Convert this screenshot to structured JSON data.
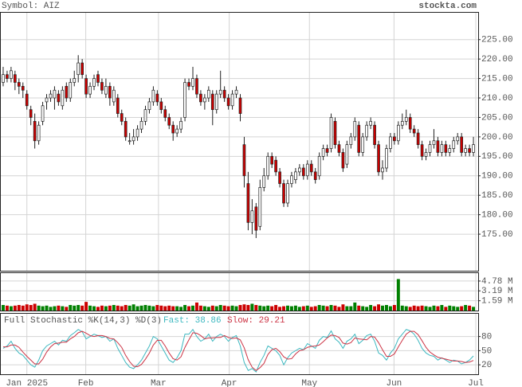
{
  "header": {
    "symbol": "Symbol: AIZ",
    "source": "stockta.com"
  },
  "chart_data": [
    {
      "type": "candlestick",
      "up_color": "#ffffff",
      "down_color": "#cc0000",
      "edge_color": "#222222",
      "ohlc": [
        [
          214,
          218,
          213,
          216
        ],
        [
          216,
          217,
          214,
          215
        ],
        [
          215,
          218,
          214,
          217
        ],
        [
          216,
          217,
          212,
          214
        ],
        [
          214,
          215,
          211,
          213
        ],
        [
          213,
          214,
          210,
          212
        ],
        [
          211,
          212,
          207,
          208
        ],
        [
          207,
          208,
          203,
          205
        ],
        [
          204,
          206,
          197,
          199
        ],
        [
          199,
          204,
          198,
          203
        ],
        [
          204,
          209,
          203,
          208
        ],
        [
          209,
          211,
          207,
          210
        ],
        [
          210,
          212,
          209,
          211
        ],
        [
          210,
          213,
          207,
          212
        ],
        [
          211,
          212,
          208,
          209
        ],
        [
          208,
          213,
          207,
          212
        ],
        [
          213,
          214,
          209,
          210
        ],
        [
          210,
          215,
          209,
          214
        ],
        [
          214,
          217,
          213,
          215
        ],
        [
          216,
          221,
          214,
          219
        ],
        [
          219,
          220,
          215,
          216
        ],
        [
          215,
          216,
          210,
          211
        ],
        [
          211,
          214,
          210,
          213
        ],
        [
          213,
          216,
          212,
          215
        ],
        [
          216,
          217,
          213,
          214
        ],
        [
          214,
          215,
          211,
          212
        ],
        [
          211,
          215,
          210,
          213
        ],
        [
          213,
          214,
          208,
          210
        ],
        [
          209,
          213,
          208,
          212
        ],
        [
          210,
          211,
          205,
          206
        ],
        [
          206,
          207,
          203,
          204
        ],
        [
          204,
          205,
          199,
          200
        ],
        [
          199,
          201,
          198,
          199
        ],
        [
          199,
          202,
          198,
          200
        ],
        [
          200,
          203,
          199,
          202
        ],
        [
          202,
          205,
          201,
          204
        ],
        [
          204,
          208,
          203,
          207
        ],
        [
          207,
          210,
          206,
          209
        ],
        [
          209,
          213,
          208,
          212
        ],
        [
          211,
          212,
          208,
          209
        ],
        [
          209,
          210,
          206,
          207
        ],
        [
          207,
          208,
          204,
          205
        ],
        [
          205,
          206,
          202,
          203
        ],
        [
          203,
          204,
          199,
          201
        ],
        [
          201,
          203,
          200,
          202
        ],
        [
          202,
          205,
          201,
          204
        ],
        [
          205,
          215,
          204,
          214
        ],
        [
          214,
          215,
          212,
          213
        ],
        [
          213,
          218,
          212,
          215
        ],
        [
          215,
          216,
          210,
          211
        ],
        [
          211,
          212,
          208,
          209
        ],
        [
          209,
          211,
          207,
          210
        ],
        [
          210,
          213,
          209,
          212
        ],
        [
          211,
          212,
          203,
          207
        ],
        [
          207,
          212,
          206,
          211
        ],
        [
          211,
          217,
          210,
          212
        ],
        [
          212,
          213,
          209,
          210
        ],
        [
          210,
          211,
          207,
          208
        ],
        [
          208,
          212,
          207,
          211
        ],
        [
          211,
          213,
          210,
          212
        ],
        [
          210,
          211,
          204,
          206
        ],
        [
          198,
          200,
          187,
          190
        ],
        [
          188,
          191,
          176,
          178
        ],
        [
          178,
          184,
          175,
          181
        ],
        [
          182,
          183,
          174,
          176
        ],
        [
          177,
          189,
          176,
          187
        ],
        [
          187,
          192,
          186,
          190
        ],
        [
          190,
          196,
          189,
          195
        ],
        [
          195,
          196,
          192,
          193
        ],
        [
          194,
          195,
          190,
          191
        ],
        [
          191,
          192,
          187,
          188
        ],
        [
          188,
          189,
          182,
          183
        ],
        [
          183,
          189,
          182,
          188
        ],
        [
          188,
          191,
          187,
          190
        ],
        [
          189,
          192,
          188,
          191
        ],
        [
          191,
          193,
          190,
          192
        ],
        [
          192,
          193,
          189,
          190
        ],
        [
          190,
          194,
          189,
          193
        ],
        [
          193,
          194,
          190,
          191
        ],
        [
          191,
          192,
          188,
          189
        ],
        [
          190,
          196,
          189,
          195
        ],
        [
          195,
          198,
          194,
          197
        ],
        [
          197,
          198,
          195,
          196
        ],
        [
          197,
          206,
          196,
          205
        ],
        [
          204,
          205,
          197,
          198
        ],
        [
          198,
          199,
          195,
          196
        ],
        [
          196,
          197,
          191,
          192
        ],
        [
          193,
          199,
          192,
          198
        ],
        [
          198,
          201,
          197,
          200
        ],
        [
          200,
          205,
          199,
          204
        ],
        [
          203,
          204,
          195,
          196
        ],
        [
          196,
          201,
          195,
          200
        ],
        [
          200,
          204,
          199,
          203
        ],
        [
          203,
          205,
          202,
          204
        ],
        [
          203,
          204,
          197,
          198
        ],
        [
          198,
          199,
          190,
          191
        ],
        [
          191,
          194,
          189,
          192
        ],
        [
          192,
          198,
          191,
          197
        ],
        [
          197,
          201,
          196,
          200
        ],
        [
          200,
          201,
          198,
          199
        ],
        [
          199,
          204,
          198,
          203
        ],
        [
          203,
          206,
          202,
          204
        ],
        [
          204,
          207,
          203,
          205
        ],
        [
          205,
          206,
          201,
          202
        ],
        [
          202,
          203,
          200,
          201
        ],
        [
          201,
          202,
          197,
          198
        ],
        [
          198,
          199,
          194,
          195
        ],
        [
          195,
          197,
          194,
          196
        ],
        [
          196,
          199,
          195,
          198
        ],
        [
          198,
          202,
          197,
          199
        ],
        [
          199,
          200,
          195,
          196
        ],
        [
          196,
          199,
          195,
          198
        ],
        [
          198,
          199,
          195,
          196
        ],
        [
          196,
          198,
          195,
          197
        ],
        [
          197,
          200,
          196,
          199
        ],
        [
          199,
          201,
          198,
          200
        ],
        [
          200,
          201,
          195,
          196
        ],
        [
          196,
          198,
          195,
          197
        ],
        [
          197,
          198,
          195,
          196
        ],
        [
          196,
          200,
          195,
          198
        ]
      ],
      "ylim": [
        165.6,
        231.9
      ],
      "yticks": [
        {
          "value": 225,
          "label": "225.00"
        },
        {
          "value": 220,
          "label": "220.00"
        },
        {
          "value": 215,
          "label": "215.00"
        },
        {
          "value": 210,
          "label": "210.00"
        },
        {
          "value": 205,
          "label": "205.00"
        },
        {
          "value": 200,
          "label": "200.00"
        },
        {
          "value": 195,
          "label": "195.00"
        },
        {
          "value": 190,
          "label": "190.00"
        },
        {
          "value": 185,
          "label": "185.00"
        },
        {
          "value": 180,
          "label": "180.00"
        },
        {
          "value": 175,
          "label": "175.00"
        }
      ],
      "xlim": [
        -0.6,
        120.2
      ],
      "xticks": [
        {
          "value": 6,
          "label": "Jan 2025"
        },
        {
          "value": 20.9,
          "label": "Feb"
        },
        {
          "value": 39.3,
          "label": "Mar"
        },
        {
          "value": 57.2,
          "label": "Apr"
        },
        {
          "value": 77.5,
          "label": "May"
        },
        {
          "value": 98.9,
          "label": "Jun"
        },
        {
          "value": 119.6,
          "label": "Jul"
        }
      ],
      "grid": true
    },
    {
      "type": "volume",
      "up_color": "#008000",
      "down_color": "#cc0000",
      "values": [
        0.9,
        0.8,
        0.7,
        0.8,
        0.9,
        0.8,
        1.0,
        0.9,
        1.1,
        0.8,
        0.7,
        0.8,
        0.6,
        0.7,
        0.8,
        0.7,
        0.6,
        0.9,
        0.8,
        0.9,
        0.8,
        1.4,
        0.8,
        0.7,
        0.6,
        0.8,
        0.7,
        0.8,
        0.9,
        0.8,
        0.7,
        0.9,
        0.8,
        1.0,
        0.7,
        0.8,
        0.9,
        0.8,
        0.7,
        0.9,
        0.8,
        0.7,
        0.8,
        0.7,
        0.7,
        0.6,
        0.9,
        0.7,
        0.8,
        1.3,
        0.8,
        0.7,
        0.6,
        0.8,
        0.7,
        0.9,
        0.8,
        0.7,
        0.8,
        0.7,
        0.9,
        1.0,
        0.9,
        1.1,
        0.9,
        0.8,
        0.7,
        0.8,
        0.7,
        0.9,
        0.6,
        0.7,
        0.8,
        0.7,
        0.8,
        0.6,
        0.7,
        0.8,
        0.6,
        0.7,
        0.9,
        0.8,
        0.7,
        0.9,
        0.8,
        0.6,
        1.0,
        0.7,
        0.7,
        1.3,
        0.8,
        0.7,
        0.6,
        0.9,
        0.7,
        1.0,
        0.8,
        0.9,
        0.7,
        0.9,
        5.1,
        0.8,
        0.7,
        0.6,
        0.8,
        0.7,
        0.8,
        0.7,
        0.6,
        0.8,
        0.7,
        0.9,
        0.6,
        0.8,
        0.7,
        0.6,
        0.7,
        0.9,
        0.8,
        0.6
      ],
      "ylim": [
        0,
        6.06
      ],
      "yticks": [
        {
          "value": 4.78,
          "label": "4.78 M"
        },
        {
          "value": 3.19,
          "label": "3.19 M"
        },
        {
          "value": 1.59,
          "label": "1.59 M"
        }
      ]
    },
    {
      "type": "line",
      "title": "Full Stochastic %K(14,3) %D(3)",
      "series": [
        {
          "name": "Fast: 38.86",
          "color": "#3cb8c0",
          "values": [
            55,
            60,
            70,
            55,
            45,
            40,
            30,
            20,
            15,
            30,
            50,
            60,
            65,
            70,
            62,
            72,
            70,
            82,
            88,
            95,
            90,
            75,
            80,
            85,
            82,
            78,
            80,
            70,
            75,
            55,
            40,
            25,
            15,
            12,
            20,
            30,
            45,
            60,
            80,
            75,
            60,
            45,
            30,
            25,
            35,
            50,
            85,
            85,
            95,
            80,
            70,
            75,
            85,
            70,
            80,
            85,
            80,
            70,
            78,
            82,
            60,
            25,
            8,
            12,
            5,
            25,
            40,
            60,
            55,
            50,
            40,
            20,
            35,
            45,
            50,
            55,
            52,
            65,
            60,
            55,
            72,
            80,
            78,
            92,
            75,
            68,
            55,
            70,
            75,
            85,
            65,
            72,
            82,
            85,
            70,
            45,
            40,
            30,
            45,
            55,
            75,
            85,
            95,
            92,
            85,
            72,
            55,
            45,
            40,
            38,
            30,
            35,
            30,
            25,
            30,
            28,
            22,
            25,
            30,
            38.86
          ]
        },
        {
          "name": "Slow: 29.21",
          "color": "#cc3344",
          "values": [
            58,
            58,
            62,
            62,
            57,
            47,
            38,
            30,
            22,
            22,
            32,
            47,
            58,
            65,
            66,
            68,
            68,
            75,
            80,
            88,
            91,
            87,
            82,
            80,
            82,
            82,
            80,
            76,
            75,
            67,
            57,
            40,
            27,
            17,
            16,
            21,
            32,
            45,
            62,
            72,
            72,
            60,
            45,
            33,
            30,
            37,
            57,
            73,
            88,
            87,
            82,
            75,
            77,
            77,
            78,
            78,
            82,
            78,
            76,
            77,
            73,
            56,
            31,
            15,
            8,
            14,
            23,
            42,
            52,
            55,
            48,
            37,
            32,
            33,
            43,
            50,
            52,
            57,
            59,
            60,
            62,
            69,
            77,
            83,
            82,
            78,
            66,
            64,
            67,
            77,
            75,
            74,
            73,
            80,
            79,
            67,
            52,
            38,
            38,
            43,
            58,
            72,
            85,
            91,
            91,
            84,
            71,
            57,
            47,
            41,
            36,
            34,
            32,
            30,
            28,
            28,
            27,
            25,
            26,
            29.21
          ]
        }
      ],
      "ylim": [
        0,
        128.3
      ],
      "yticks": [
        80,
        50,
        20
      ],
      "grid": true
    }
  ]
}
